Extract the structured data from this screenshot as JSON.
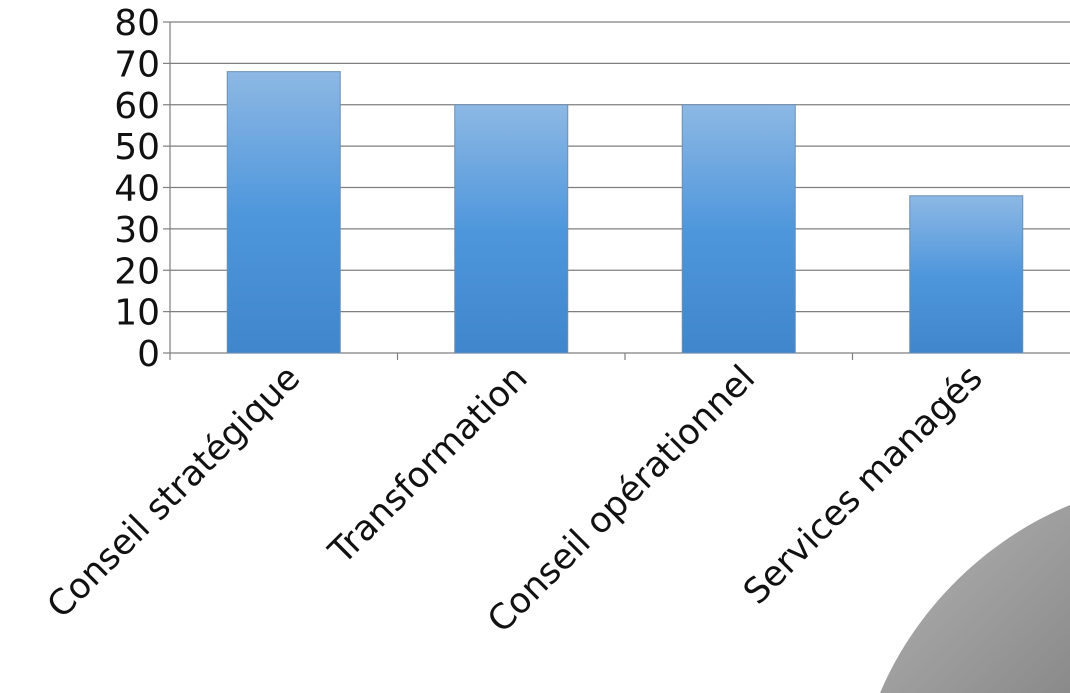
{
  "chart_data": {
    "type": "bar",
    "categories": [
      "Conseil stratégique",
      "Transformation",
      "Conseil opérationnel",
      "Services managés"
    ],
    "values": [
      68,
      60,
      60,
      38
    ],
    "title": "",
    "xlabel": "",
    "ylabel": "",
    "ylim": [
      0,
      80
    ],
    "yticks": [
      0,
      10,
      20,
      30,
      40,
      50,
      60,
      70,
      80
    ],
    "grid": true,
    "legend": "none",
    "colors": {
      "bar_top": "#8db8e4",
      "bar_mid": "#4f97dc",
      "bar_bottom": "#3f86cc",
      "bar_stroke": "#6a8fb5",
      "grid": "#7f7f7f",
      "axis": "#7f7f7f",
      "decoration": "#9b9b9b"
    }
  }
}
